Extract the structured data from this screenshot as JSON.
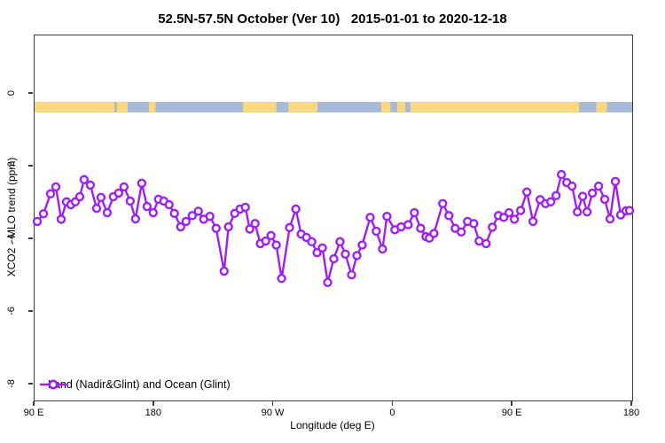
{
  "title": "52.5N-57.5N October (Ver 10)   2015-01-01 to 2020-12-18",
  "colors": {
    "series": "#A020F0",
    "land": "#FBD880",
    "ocean": "#A7BAD7",
    "axis": "#3a3a3a"
  },
  "chart_data": {
    "type": "line",
    "title": "52.5N-57.5N October (Ver 10)   2015-01-01 to 2020-12-18",
    "xlabel": "Longitude (deg E)",
    "ylabel": "XCO2 - MLO trend (ppm)",
    "grid": false,
    "legend_position": "bottom-left",
    "xlim": [
      0,
      450
    ],
    "ylim": [
      -8.44,
      1.61
    ],
    "x_unit": "degrees eastward from 90E; axis wraps 90E>180>90W>0>90E>180",
    "x_ticks": [
      {
        "pos": 0,
        "label": "90 E"
      },
      {
        "pos": 90,
        "label": "180"
      },
      {
        "pos": 180,
        "label": "90 W"
      },
      {
        "pos": 270,
        "label": "0"
      },
      {
        "pos": 360,
        "label": "90 E"
      },
      {
        "pos": 450,
        "label": "180"
      }
    ],
    "y_ticks": [
      {
        "pos": 0,
        "label": "0"
      },
      {
        "pos": -2,
        "label": "-2"
      },
      {
        "pos": -4,
        "label": "-4"
      },
      {
        "pos": -6,
        "label": "-6"
      },
      {
        "pos": -8,
        "label": "-8"
      }
    ],
    "surface_type_band": {
      "description": "land/ocean strip along latitude band",
      "y_top": -0.22,
      "y_bottom": -0.51,
      "ocean_color": "#A7BAD7",
      "land_color": "#FBD880",
      "land_segments_deg": [
        [
          0,
          60
        ],
        [
          62,
          70
        ],
        [
          86,
          91
        ],
        [
          157,
          182
        ],
        [
          191,
          213
        ],
        [
          261,
          268
        ],
        [
          273,
          279
        ],
        [
          283,
          410
        ],
        [
          423,
          431
        ]
      ]
    },
    "series": [
      {
        "name": "Land (Nadir&Glint) and Ocean (Glint)",
        "color": "#A020F0",
        "marker": "open-circle",
        "x": [
          2.0,
          6.7,
          12.0,
          16.0,
          20.0,
          24.0,
          27.3,
          30.7,
          34.0,
          37.3,
          42.0,
          46.7,
          50.0,
          54.7,
          59.3,
          63.3,
          67.3,
          72.0,
          76.0,
          80.7,
          84.7,
          89.3,
          93.3,
          97.3,
          101.3,
          105.3,
          110.0,
          114.0,
          118.7,
          123.3,
          127.3,
          132.0,
          136.7,
          142.7,
          146.0,
          150.7,
          154.7,
          158.7,
          162.0,
          166.0,
          170.0,
          174.0,
          178.0,
          182.0,
          186.0,
          192.0,
          196.7,
          200.7,
          204.7,
          208.7,
          212.7,
          216.7,
          220.7,
          225.3,
          230.0,
          234.0,
          238.7,
          242.7,
          246.7,
          252.7,
          257.3,
          262.0,
          265.3,
          271.3,
          276.0,
          281.3,
          286.0,
          290.7,
          294.7,
          297.3,
          300.7,
          307.3,
          312.0,
          316.7,
          321.3,
          326.0,
          330.7,
          334.7,
          340.0,
          344.7,
          349.3,
          353.3,
          357.3,
          361.3,
          366.0,
          370.7,
          375.3,
          380.7,
          384.7,
          388.7,
          392.7,
          396.7,
          400.7,
          404.7,
          408.7,
          412.7,
          416.0,
          420.0,
          424.7,
          429.3,
          433.3,
          437.3,
          441.3,
          445.3,
          448.0
        ],
        "y": [
          -3.51,
          -3.3,
          -2.75,
          -2.56,
          -3.45,
          -2.97,
          -3.05,
          -2.97,
          -2.83,
          -2.36,
          -2.51,
          -3.15,
          -2.85,
          -3.27,
          -2.83,
          -2.73,
          -2.56,
          -2.95,
          -3.44,
          -2.46,
          -3.1,
          -3.27,
          -2.9,
          -2.95,
          -3.05,
          -3.29,
          -3.66,
          -3.51,
          -3.35,
          -3.23,
          -3.45,
          -3.37,
          -3.7,
          -4.88,
          -3.66,
          -3.29,
          -3.17,
          -3.12,
          -3.72,
          -3.57,
          -4.12,
          -4.05,
          -3.9,
          -4.16,
          -5.08,
          -3.68,
          -3.17,
          -3.86,
          -3.95,
          -4.07,
          -4.37,
          -4.24,
          -5.19,
          -4.54,
          -4.07,
          -4.41,
          -4.98,
          -4.45,
          -4.16,
          -3.4,
          -3.78,
          -4.27,
          -3.37,
          -3.74,
          -3.66,
          -3.6,
          -3.27,
          -3.7,
          -3.93,
          -3.97,
          -3.84,
          -3.02,
          -3.35,
          -3.7,
          -3.8,
          -3.51,
          -3.57,
          -4.05,
          -4.12,
          -3.67,
          -3.35,
          -3.4,
          -3.27,
          -3.45,
          -3.21,
          -2.7,
          -3.51,
          -2.91,
          -3.02,
          -2.97,
          -2.8,
          -2.22,
          -2.44,
          -2.54,
          -3.25,
          -2.82,
          -3.25,
          -2.73,
          -2.54,
          -2.9,
          -3.44,
          -2.41,
          -3.33,
          -3.22,
          -3.21
        ]
      }
    ]
  }
}
